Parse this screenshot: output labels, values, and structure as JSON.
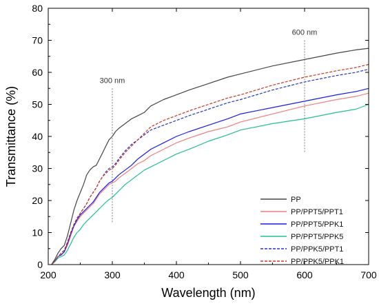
{
  "chart_data": {
    "type": "line",
    "xlabel": "Wavelength (nm)",
    "ylabel": "Transmittance (%)",
    "xlim": [
      200,
      700
    ],
    "ylim": [
      0,
      80
    ],
    "xticks": [
      200,
      300,
      400,
      500,
      600,
      700
    ],
    "yticks": [
      0,
      10,
      20,
      30,
      40,
      50,
      60,
      70,
      80
    ],
    "grid": false,
    "legend_position": "bottom-right",
    "annotations": [
      {
        "label": "300 nm",
        "x": 300,
        "y_range": [
          13,
          55
        ]
      },
      {
        "label": "600 nm",
        "x": 600,
        "y_range": [
          35,
          70
        ]
      }
    ],
    "series": [
      {
        "name": "PP",
        "color": "#444444",
        "dash": "solid",
        "x": [
          205,
          210,
          215,
          220,
          225,
          230,
          235,
          240,
          245,
          250,
          255,
          260,
          265,
          270,
          275,
          280,
          285,
          290,
          295,
          300,
          305,
          310,
          320,
          330,
          340,
          350,
          360,
          380,
          400,
          420,
          450,
          480,
          500,
          550,
          600,
          650,
          680,
          700
        ],
        "y": [
          0,
          1.5,
          3.5,
          5,
          6,
          9,
          13,
          17,
          20,
          22.5,
          25,
          28,
          29.5,
          30.5,
          31,
          33,
          35,
          37,
          39,
          40,
          41.5,
          42.5,
          44,
          45.5,
          46.5,
          47.5,
          49.5,
          51.5,
          53,
          54.5,
          56.5,
          58.5,
          59.5,
          62,
          64,
          66,
          67,
          67.5
        ]
      },
      {
        "name": "PP/PPT5/PPT1",
        "color": "#f07d7d",
        "dash": "solid",
        "x": [
          205,
          210,
          215,
          220,
          225,
          230,
          235,
          240,
          245,
          250,
          255,
          260,
          265,
          270,
          275,
          280,
          285,
          290,
          295,
          300,
          305,
          310,
          320,
          330,
          340,
          350,
          360,
          380,
          400,
          420,
          450,
          480,
          500,
          550,
          600,
          650,
          680,
          700
        ],
        "y": [
          0,
          1,
          2.5,
          3,
          4,
          6,
          9,
          12,
          13.5,
          15,
          16,
          17,
          18,
          19,
          20.5,
          22,
          23,
          24,
          25,
          25.5,
          26,
          27,
          28.5,
          30,
          31.5,
          32.5,
          34,
          36,
          38,
          39.5,
          41.5,
          43,
          44.5,
          47,
          49.5,
          51.5,
          52.5,
          53.5
        ]
      },
      {
        "name": "PP/PPT5/PPK1",
        "color": "#1a1ae6",
        "dash": "solid",
        "x": [
          205,
          210,
          215,
          220,
          225,
          230,
          235,
          240,
          245,
          250,
          255,
          260,
          265,
          270,
          275,
          280,
          285,
          290,
          295,
          300,
          305,
          310,
          320,
          330,
          340,
          350,
          360,
          380,
          400,
          420,
          450,
          480,
          500,
          550,
          600,
          650,
          680,
          700
        ],
        "y": [
          0,
          1,
          2.5,
          3,
          4,
          6.5,
          9.5,
          12,
          14,
          15.5,
          16.5,
          17.5,
          18.5,
          19.5,
          21,
          22.5,
          23.5,
          24.5,
          25.5,
          26,
          27,
          28,
          29.5,
          31,
          33,
          34.5,
          36,
          38,
          40,
          41.5,
          43.5,
          45.5,
          47,
          49,
          51,
          53,
          54,
          55
        ]
      },
      {
        "name": "PP/PPT5/PPK5",
        "color": "#1fbf8f",
        "dash": "solid",
        "x": [
          205,
          210,
          215,
          220,
          225,
          230,
          235,
          240,
          245,
          250,
          255,
          260,
          265,
          270,
          275,
          280,
          285,
          290,
          295,
          300,
          305,
          310,
          320,
          330,
          340,
          350,
          360,
          380,
          400,
          420,
          450,
          480,
          500,
          550,
          600,
          650,
          680,
          700
        ],
        "y": [
          0,
          0.8,
          2,
          2.5,
          3,
          4.5,
          6.5,
          8.5,
          10,
          11,
          12.5,
          13.5,
          14.5,
          15.5,
          16.5,
          17.5,
          18.5,
          19.5,
          20.3,
          21,
          22,
          23,
          25,
          26.5,
          28,
          29.5,
          30.5,
          32.5,
          34.5,
          36,
          38.5,
          40.5,
          42,
          44,
          45.5,
          47.5,
          48.5,
          50
        ]
      },
      {
        "name": "PP/PPK5/PPT1",
        "color": "#2233cc",
        "dash": "dashed",
        "x": [
          205,
          210,
          215,
          220,
          225,
          230,
          235,
          240,
          245,
          250,
          255,
          260,
          265,
          270,
          275,
          280,
          285,
          290,
          295,
          300,
          305,
          310,
          320,
          330,
          340,
          350,
          360,
          380,
          400,
          420,
          450,
          480,
          500,
          550,
          600,
          650,
          680,
          700
        ],
        "y": [
          0,
          1,
          2.5,
          3.5,
          4.5,
          7,
          10,
          12.5,
          14.5,
          16,
          17.5,
          19,
          21,
          22.5,
          24,
          26,
          27.5,
          29,
          30,
          30.5,
          31.5,
          33,
          35.5,
          37.5,
          39,
          40.5,
          42,
          43.5,
          45,
          46.5,
          48.5,
          50.5,
          51.5,
          54.5,
          57,
          59,
          60,
          61
        ]
      },
      {
        "name": "PP/PPK5/PPK1",
        "color": "#cc3322",
        "dash": "dashed",
        "x": [
          205,
          210,
          215,
          220,
          225,
          230,
          235,
          240,
          245,
          250,
          255,
          260,
          265,
          270,
          275,
          280,
          285,
          290,
          295,
          300,
          305,
          310,
          320,
          330,
          340,
          350,
          360,
          380,
          400,
          420,
          450,
          480,
          500,
          550,
          600,
          650,
          680,
          700
        ],
        "y": [
          0,
          1,
          2.5,
          3.5,
          4.5,
          7,
          10,
          12.5,
          14.5,
          16,
          17.5,
          19,
          21,
          22.5,
          24,
          26,
          27.5,
          28.5,
          29.5,
          30,
          31,
          32.5,
          35,
          37,
          39,
          41,
          43,
          45,
          46.5,
          48,
          50,
          52,
          53,
          56,
          58.5,
          60.5,
          61.5,
          62.5
        ]
      }
    ]
  }
}
